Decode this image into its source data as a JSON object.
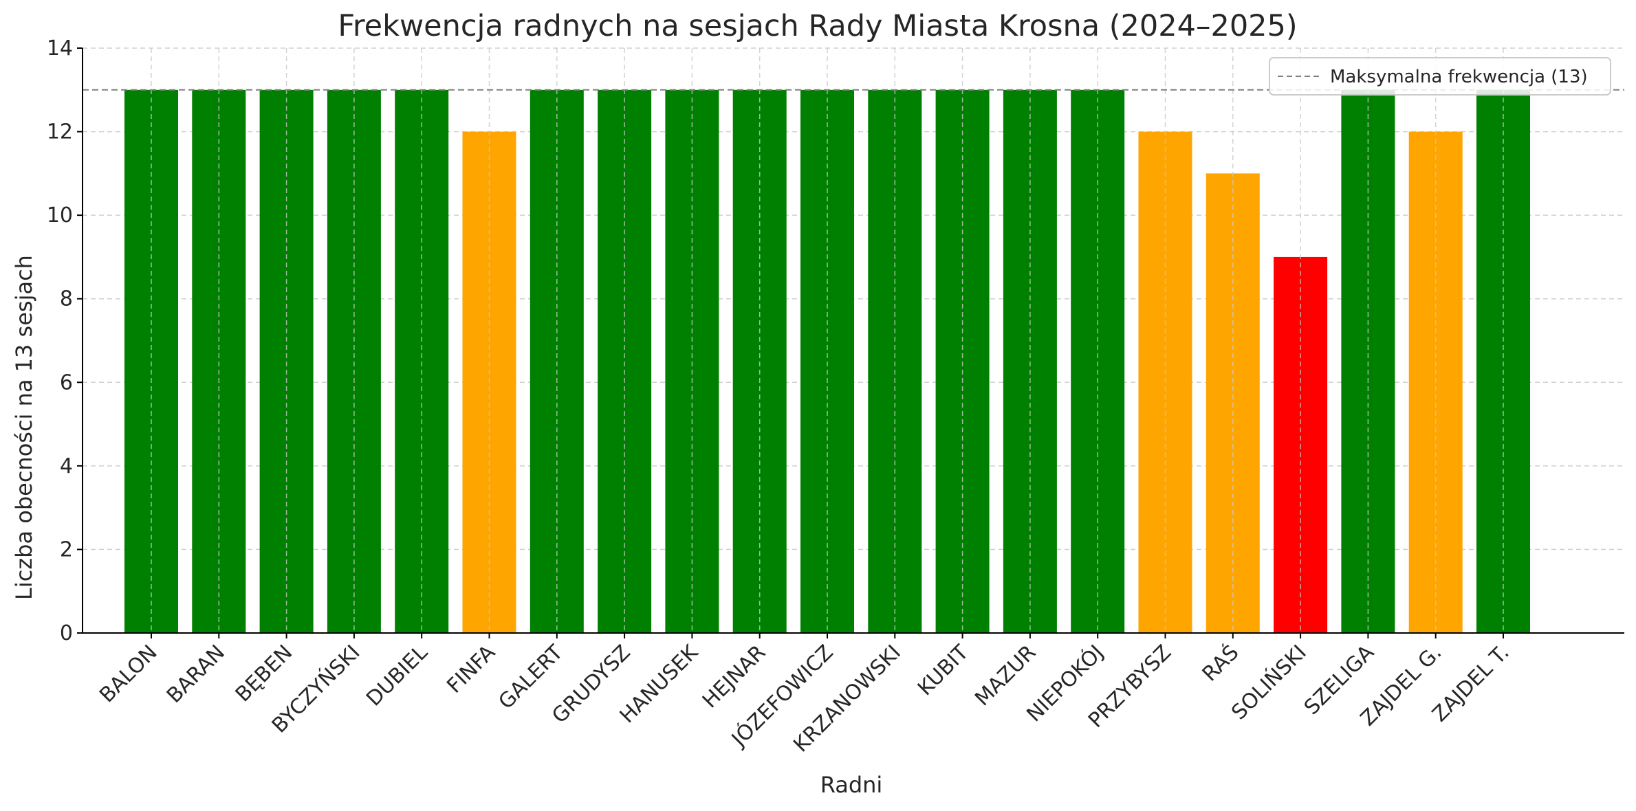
{
  "chart_data": {
    "type": "bar",
    "title": "Frekwencja radnych na sesjach Rady Miasta Krosna (2024–2025)",
    "xlabel": "Radni",
    "ylabel": "Liczba obecności na 13 sesjach",
    "ylim": [
      0,
      14
    ],
    "yticks": [
      0,
      2,
      4,
      6,
      8,
      10,
      12,
      14
    ],
    "grid": true,
    "categories": [
      "BALON",
      "BARAN",
      "BĘBEN",
      "BYCZYŃSKI",
      "DUBIEL",
      "FINFA",
      "GALERT",
      "GRUDYSZ",
      "HANUSEK",
      "HEJNAR",
      "JÓZEFOWICZ",
      "KRZANOWSKI",
      "KUBIT",
      "MAZUR",
      "NIEPOKÓJ",
      "PRZYBYSZ",
      "RAŚ",
      "SOLIŃSKI",
      "SZELIGA",
      "ZAJDEL G.",
      "ZAJDEL T."
    ],
    "values": [
      13,
      13,
      13,
      13,
      13,
      12,
      13,
      13,
      13,
      13,
      13,
      13,
      13,
      13,
      13,
      12,
      11,
      9,
      13,
      12,
      13
    ],
    "bar_colors": [
      "#008000",
      "#008000",
      "#008000",
      "#008000",
      "#008000",
      "#FFA500",
      "#008000",
      "#008000",
      "#008000",
      "#008000",
      "#008000",
      "#008000",
      "#008000",
      "#008000",
      "#008000",
      "#FFA500",
      "#FFA500",
      "#FF0000",
      "#008000",
      "#FFA500",
      "#008000"
    ],
    "reference_line": {
      "value": 13,
      "label": "Maksymalna frekwencja (13)",
      "color": "#808080",
      "style": "dashed"
    },
    "legend": {
      "placement": "top-right",
      "entries": [
        "Maksymalna frekwencja (13)"
      ]
    }
  }
}
